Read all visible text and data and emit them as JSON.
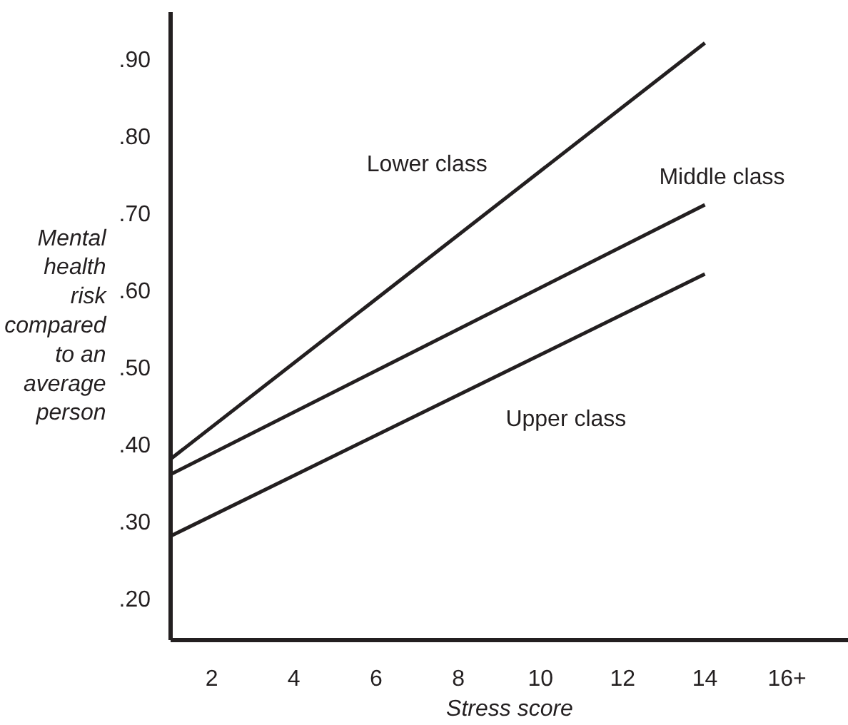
{
  "chart_data": {
    "type": "line",
    "xlabel": "Stress score",
    "ylabel": "Mental\nhealth\nrisk\ncompared\nto an\naverage\nperson",
    "x": [
      1,
      14
    ],
    "series": [
      {
        "name": "Lower class",
        "color": "#231f20",
        "values": [
          0.38,
          0.92
        ]
      },
      {
        "name": "Middle class",
        "color": "#231f20",
        "values": [
          0.36,
          0.71
        ]
      },
      {
        "name": "Upper class",
        "color": "#231f20",
        "values": [
          0.28,
          0.62
        ]
      }
    ],
    "xlim": [
      1,
      17.5
    ],
    "ylim": [
      0.145,
      0.96
    ],
    "xticks": [
      2,
      4,
      6,
      8,
      10,
      12,
      14,
      {
        "value": 16,
        "label": "16+"
      }
    ],
    "yticks": [
      {
        "value": 0.2,
        "label": ".20"
      },
      {
        "value": 0.3,
        "label": ".30"
      },
      {
        "value": 0.4,
        "label": ".40"
      },
      {
        "value": 0.5,
        "label": ".50"
      },
      {
        "value": 0.6,
        "label": ".60"
      },
      {
        "value": 0.7,
        "label": ".70"
      },
      {
        "value": 0.8,
        "label": ".80"
      },
      {
        "value": 0.9,
        "label": ".90"
      }
    ],
    "grid": false,
    "marker": "none",
    "line_style": "solid"
  }
}
